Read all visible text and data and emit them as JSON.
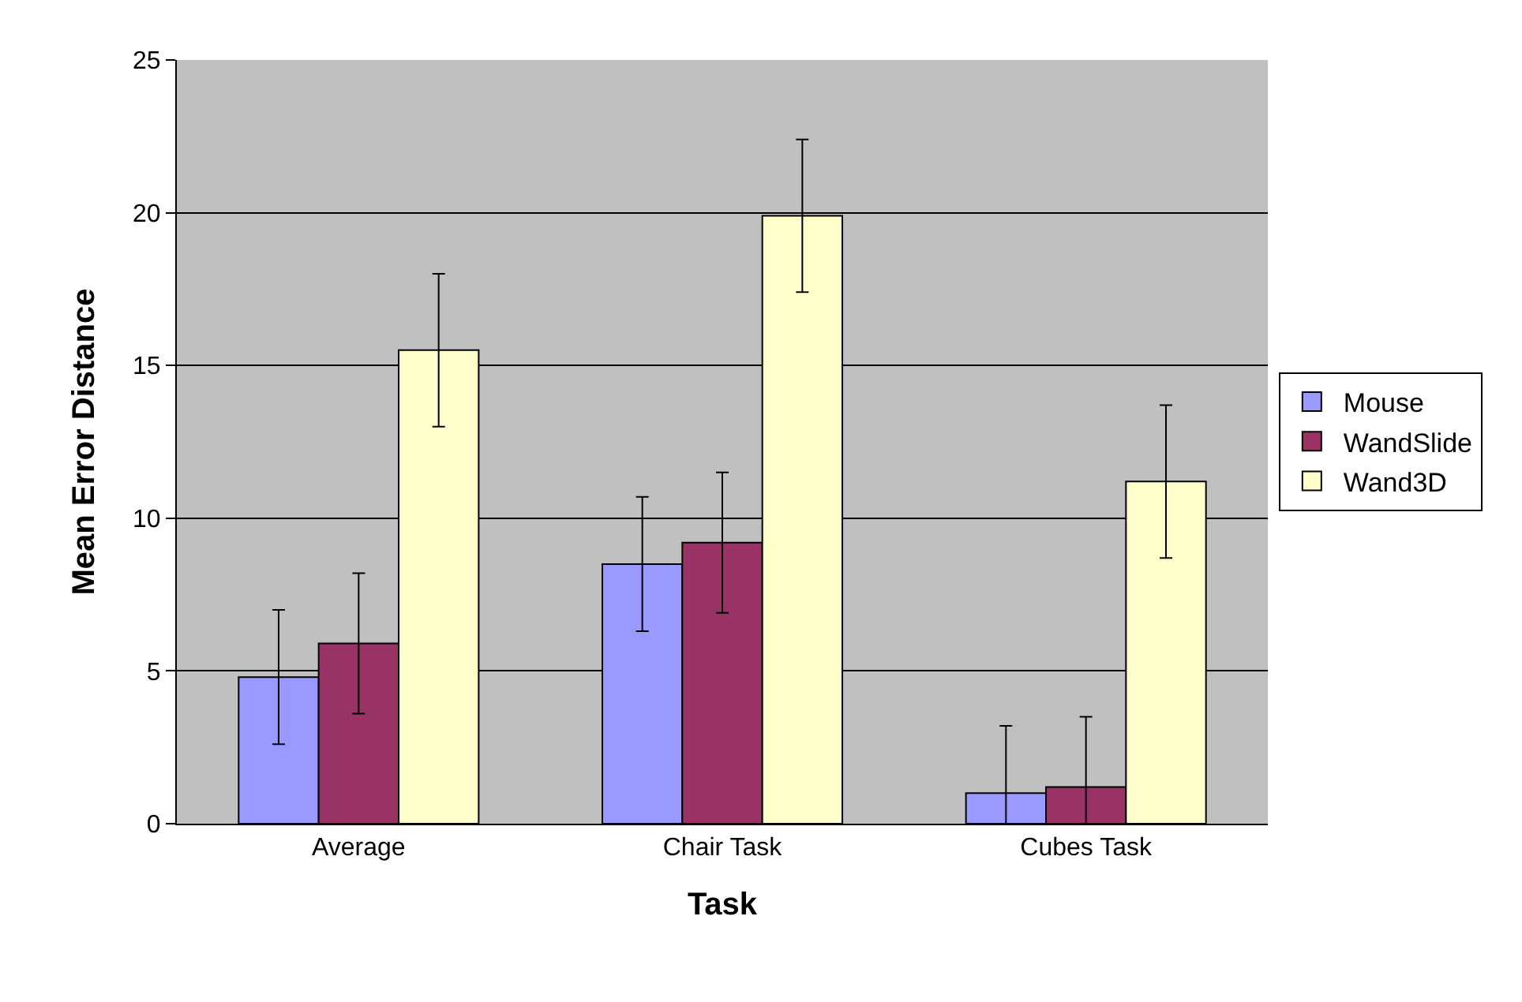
{
  "chart_data": {
    "type": "bar",
    "xlabel": "Task",
    "ylabel": "Mean Error Distance",
    "categories": [
      "Average",
      "Chair Task",
      "Cubes Task"
    ],
    "series": [
      {
        "name": "Mouse",
        "color": "#9999ff",
        "values": [
          4.8,
          8.5,
          1.0
        ],
        "errors": [
          2.2,
          2.2,
          [
            0,
            3.2
          ]
        ]
      },
      {
        "name": "WandSlide",
        "color": "#993366",
        "values": [
          5.9,
          9.2,
          1.2
        ],
        "errors": [
          2.3,
          2.3,
          [
            0,
            3.5
          ]
        ]
      },
      {
        "name": "Wand3D",
        "color": "#ffffcc",
        "values": [
          15.5,
          19.9,
          11.2
        ],
        "errors": [
          2.5,
          2.5,
          2.5
        ]
      }
    ],
    "ylim": [
      0,
      25
    ],
    "yticks": [
      0,
      5,
      10,
      15,
      20,
      25
    ],
    "grid": "y",
    "legend": "right"
  }
}
